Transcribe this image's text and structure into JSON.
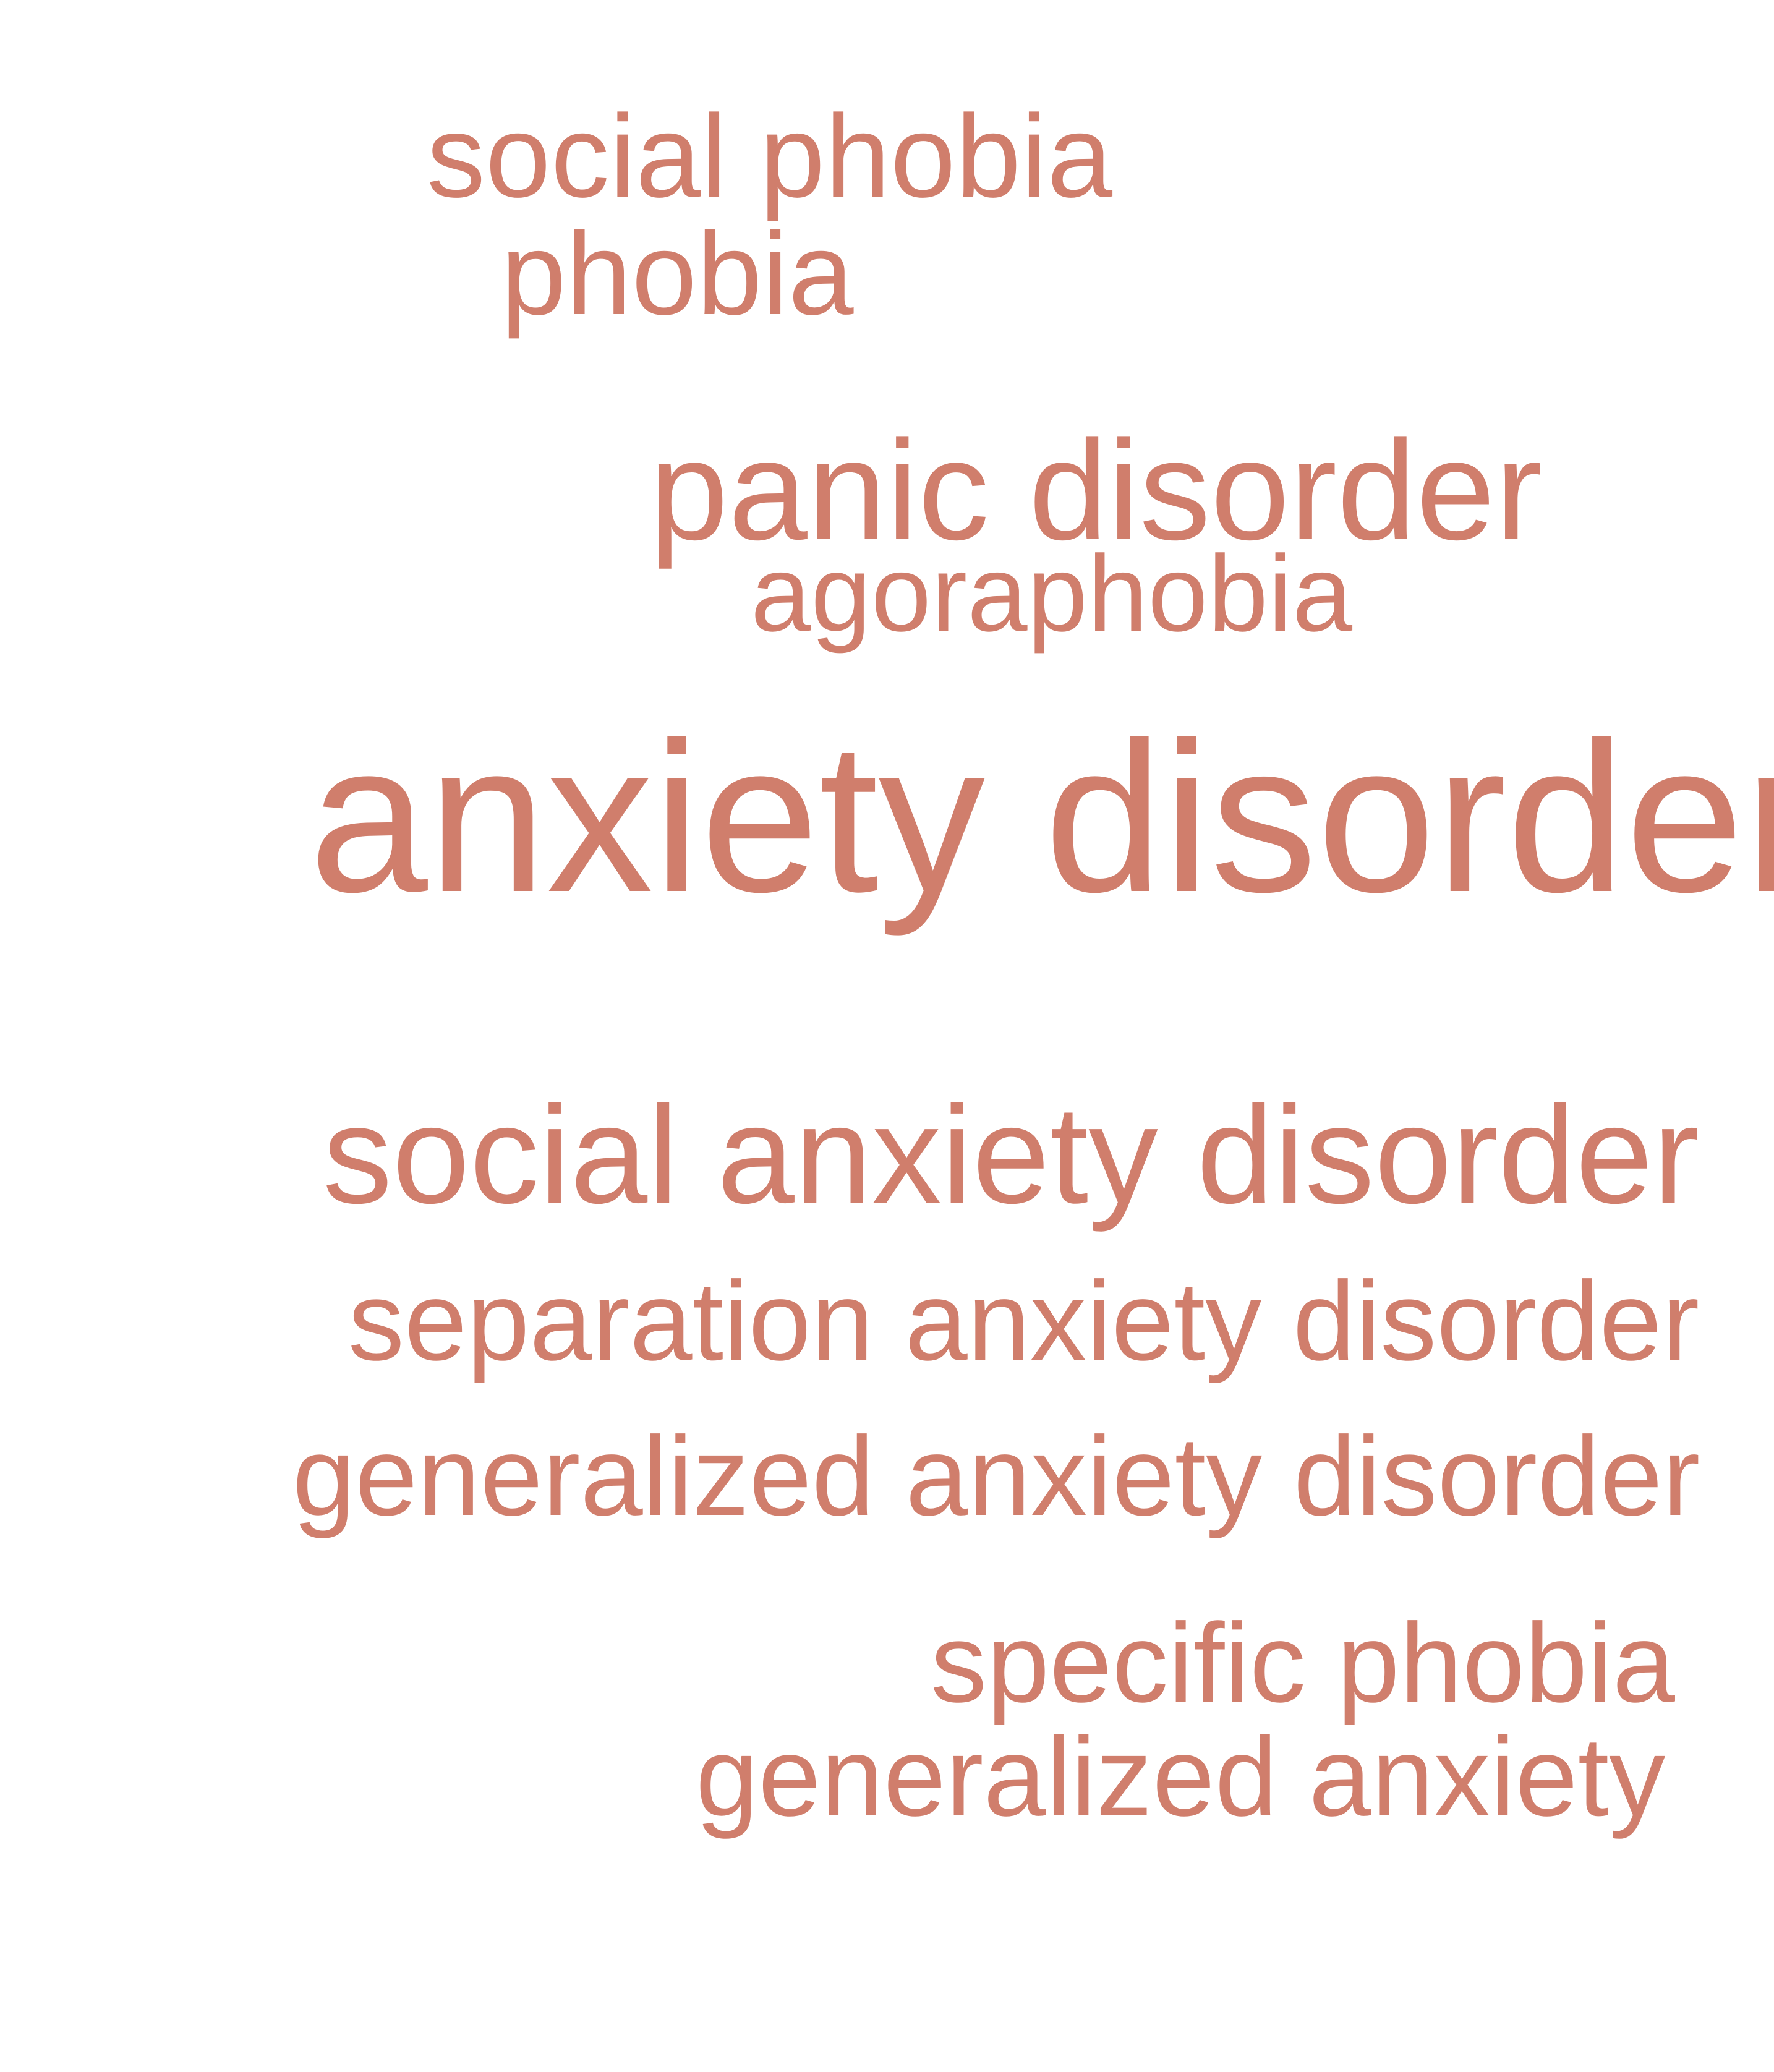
{
  "accent_color": "#d07e6c",
  "words": [
    {
      "text": "social phobia"
    },
    {
      "text": "phobia"
    },
    {
      "text": "panic disorder"
    },
    {
      "text": "agoraphobia"
    },
    {
      "text": "anxiety disorder"
    },
    {
      "text": "social anxiety disorder"
    },
    {
      "text": "separation anxiety disorder"
    },
    {
      "text": "generalized anxiety disorder"
    },
    {
      "text": "specific phobia"
    },
    {
      "text": "generalized anxiety"
    }
  ]
}
